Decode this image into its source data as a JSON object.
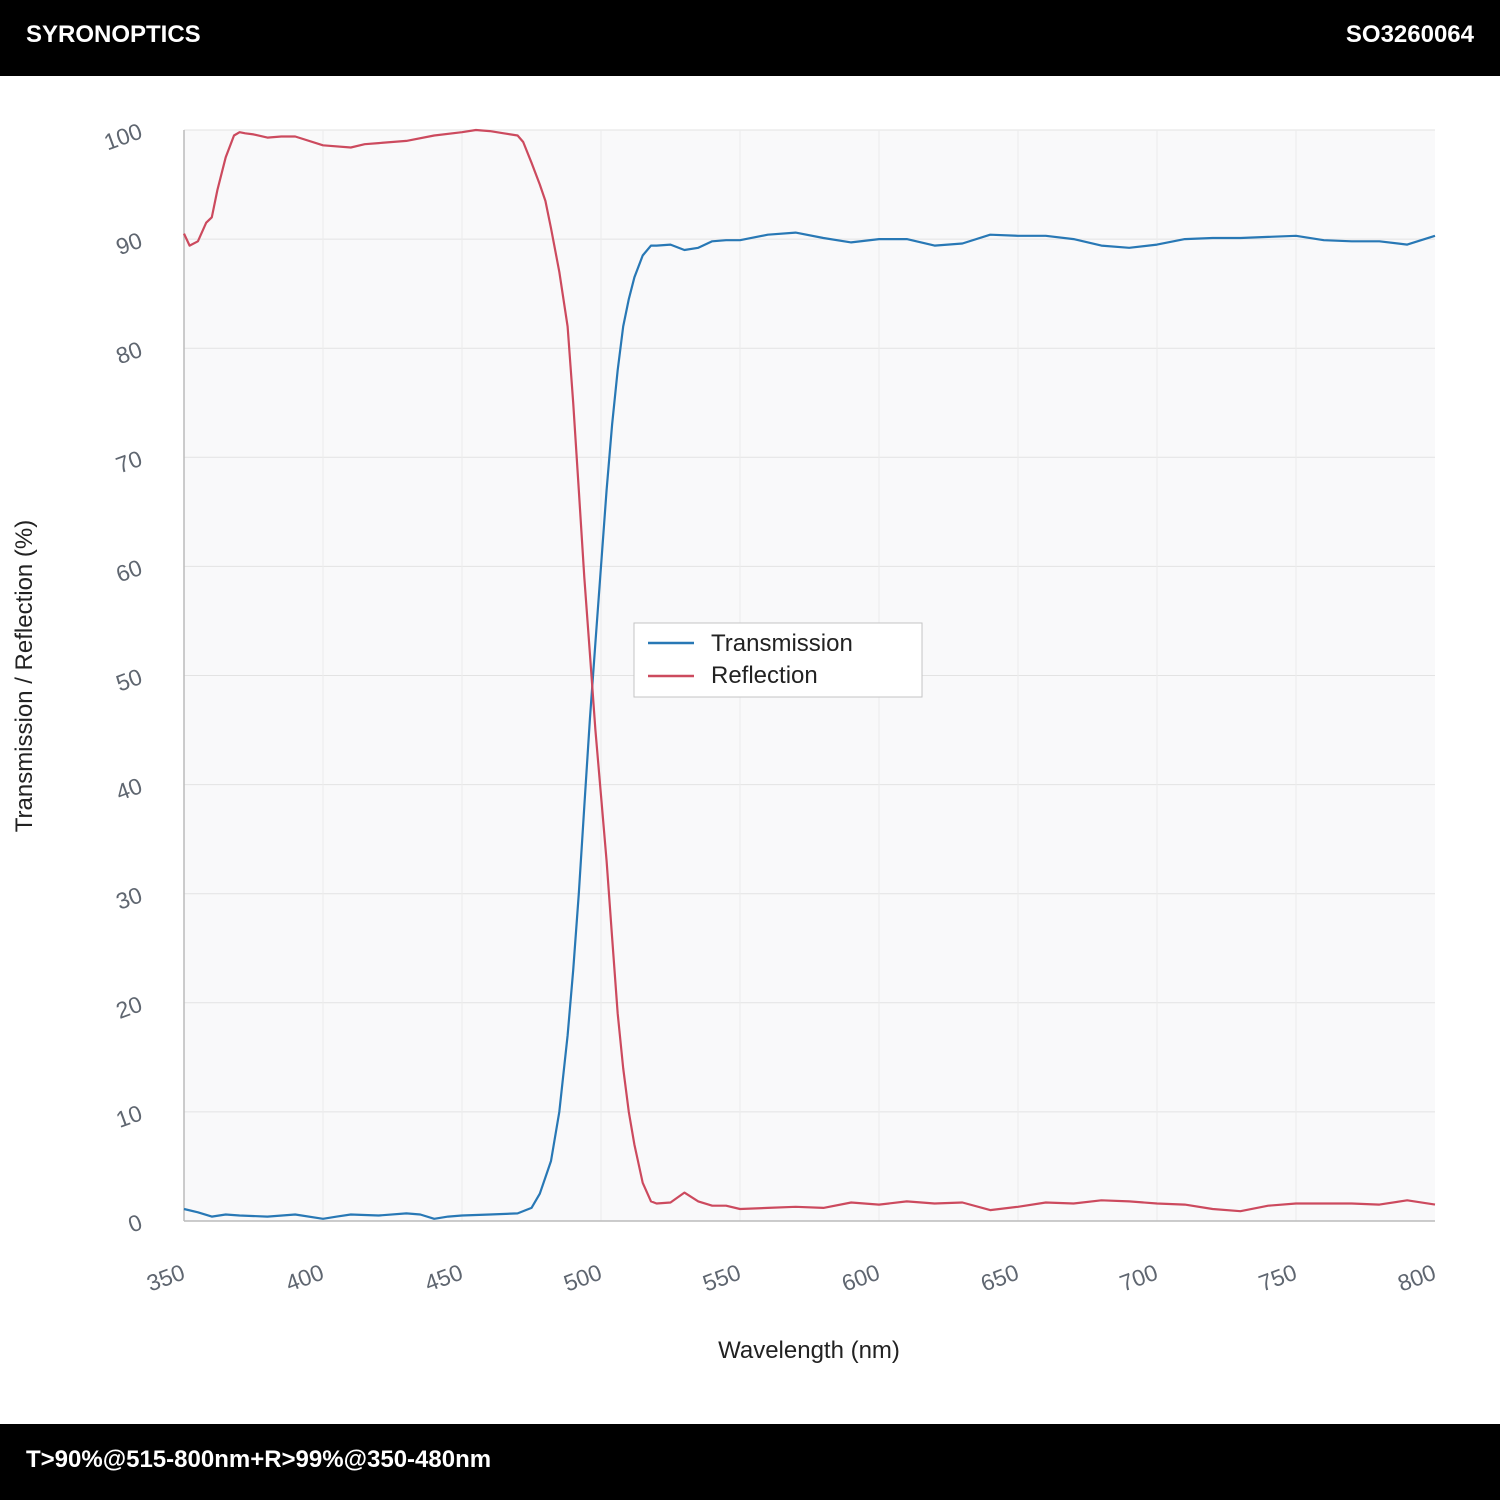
{
  "header": {
    "brand": "SYRONOPTICS",
    "code": "SO3260064"
  },
  "footer": {
    "spec": "T>90%@515-800nm+R>99%@350-480nm"
  },
  "chart_data": {
    "type": "line",
    "xlabel": "Wavelength (nm)",
    "ylabel": "Transmission / Reflection (%)",
    "xlim": [
      350,
      800
    ],
    "ylim": [
      0,
      100
    ],
    "xticks": [
      "350",
      "400",
      "450",
      "500",
      "550",
      "600",
      "650",
      "700",
      "750",
      "800"
    ],
    "yticks": [
      "0",
      "10",
      "20",
      "30",
      "40",
      "50",
      "60",
      "70",
      "80",
      "90",
      "100"
    ],
    "grid": true,
    "legend_position": "center",
    "series": [
      {
        "name": "Transmission",
        "color": "#2878b5",
        "x": [
          350,
          355,
          360,
          365,
          370,
          380,
          390,
          400,
          405,
          410,
          420,
          430,
          435,
          440,
          445,
          450,
          460,
          470,
          475,
          478,
          480,
          482,
          485,
          488,
          490,
          492,
          494,
          496,
          498,
          500,
          502,
          504,
          506,
          508,
          510,
          512,
          515,
          518,
          520,
          525,
          530,
          535,
          540,
          545,
          550,
          560,
          570,
          580,
          590,
          600,
          610,
          620,
          630,
          640,
          650,
          660,
          670,
          680,
          690,
          700,
          710,
          720,
          730,
          740,
          750,
          760,
          770,
          780,
          790,
          800
        ],
        "y": [
          1.1,
          0.8,
          0.4,
          0.6,
          0.5,
          0.4,
          0.6,
          0.2,
          0.4,
          0.6,
          0.5,
          0.7,
          0.6,
          0.2,
          0.4,
          0.5,
          0.6,
          0.7,
          1.2,
          2.5,
          4.0,
          5.5,
          10.0,
          17.0,
          23.0,
          30.0,
          38.0,
          46.0,
          53.0,
          60.0,
          67.0,
          73.0,
          78.0,
          82.0,
          84.5,
          86.5,
          88.5,
          89.4,
          89.4,
          89.5,
          89.0,
          89.2,
          89.8,
          89.9,
          89.9,
          90.4,
          90.6,
          90.1,
          89.7,
          90.0,
          90.0,
          89.4,
          89.6,
          90.4,
          90.3,
          90.3,
          90.0,
          89.4,
          89.2,
          89.5,
          90.0,
          90.1,
          90.1,
          90.2,
          90.3,
          89.9,
          89.8,
          89.8,
          89.5,
          90.3
        ]
      },
      {
        "name": "Reflection",
        "color": "#cc4a5e",
        "x": [
          350,
          352,
          355,
          358,
          360,
          362,
          365,
          368,
          370,
          372,
          375,
          380,
          385,
          390,
          400,
          410,
          415,
          420,
          430,
          440,
          450,
          455,
          460,
          465,
          470,
          472,
          475,
          478,
          480,
          482,
          485,
          488,
          490,
          492,
          494,
          496,
          498,
          500,
          502,
          504,
          506,
          508,
          510,
          512,
          515,
          518,
          520,
          525,
          530,
          535,
          540,
          545,
          550,
          560,
          570,
          580,
          590,
          600,
          610,
          620,
          630,
          640,
          650,
          660,
          670,
          680,
          690,
          700,
          710,
          720,
          730,
          740,
          750,
          760,
          770,
          780,
          790,
          800
        ],
        "y": [
          90.5,
          89.4,
          89.8,
          91.5,
          92.0,
          94.5,
          97.5,
          99.5,
          99.8,
          99.7,
          99.6,
          99.3,
          99.4,
          99.4,
          98.6,
          98.4,
          98.7,
          98.8,
          99.0,
          99.5,
          99.8,
          100.0,
          99.9,
          99.7,
          99.5,
          98.9,
          97.0,
          95.0,
          93.5,
          91.0,
          87.0,
          82.0,
          75.0,
          67.0,
          59.0,
          52.0,
          45.0,
          39.0,
          33.0,
          26.0,
          19.0,
          14.0,
          10.0,
          7.0,
          3.5,
          1.8,
          1.6,
          1.7,
          2.6,
          1.8,
          1.4,
          1.4,
          1.1,
          1.2,
          1.3,
          1.2,
          1.7,
          1.5,
          1.8,
          1.6,
          1.7,
          1.0,
          1.3,
          1.7,
          1.6,
          1.9,
          1.8,
          1.6,
          1.5,
          1.1,
          0.9,
          1.4,
          1.6,
          1.6,
          1.6,
          1.5,
          1.9,
          1.5
        ]
      }
    ]
  }
}
